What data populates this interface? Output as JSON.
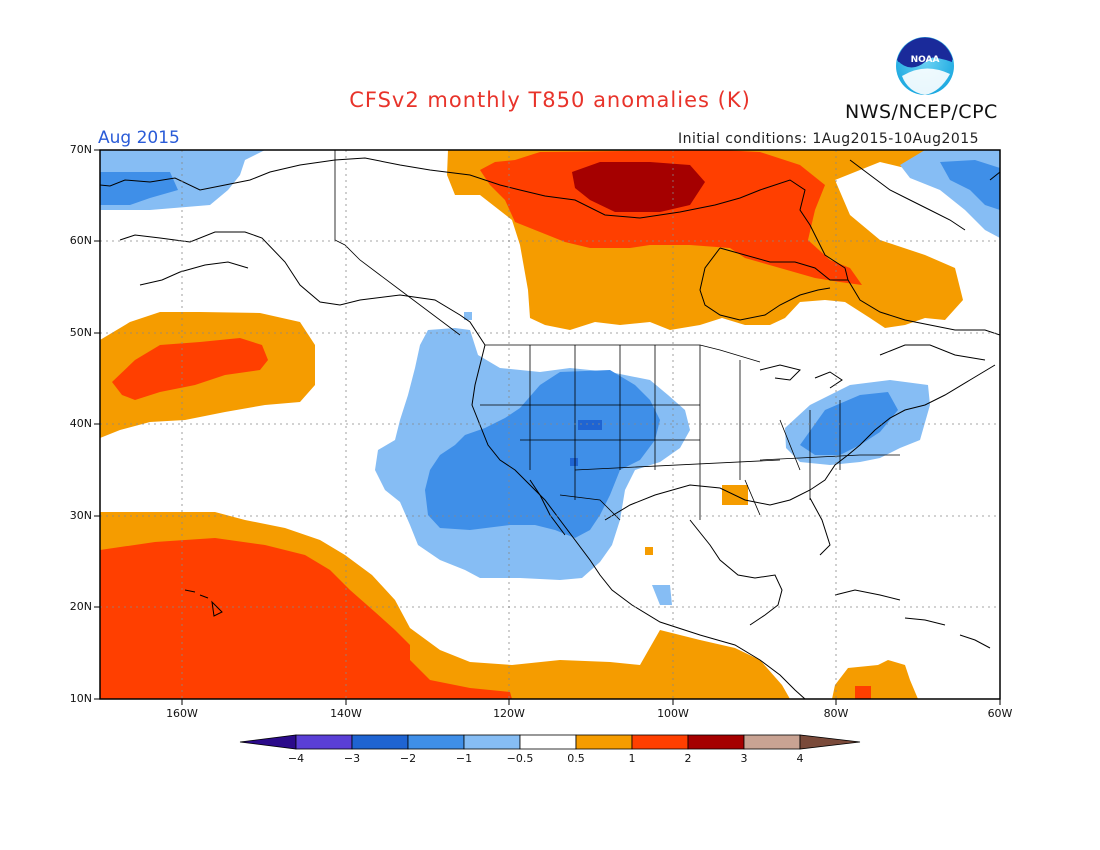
{
  "header": {
    "title": "CFSv2 monthly T850 anomalies (K)",
    "agency": "NWS/NCEP/CPC",
    "logo_text": "NOAA",
    "month": "Aug 2015",
    "initial_conditions": "Initial conditions: 1Aug2015-10Aug2015"
  },
  "axes": {
    "lat_labels": [
      "70N",
      "60N",
      "50N",
      "40N",
      "30N",
      "20N",
      "10N"
    ],
    "lon_labels": [
      "160W",
      "140W",
      "120W",
      "100W",
      "80W",
      "60W"
    ]
  },
  "colorbar": {
    "tick_labels": [
      "−4",
      "−3",
      "−2",
      "−1",
      "−0.5",
      "0.5",
      "1",
      "2",
      "3",
      "4"
    ],
    "colors": [
      "#2b0a8a",
      "#5a3fd6",
      "#1f64d2",
      "#3f8fe8",
      "#86bdf4",
      "#ffffff",
      "#f59c00",
      "#ff3f00",
      "#a50000",
      "#c9a393",
      "#7a4a3a"
    ]
  },
  "colors": {
    "title": "#e8332a",
    "month_label": "#2a5bd7"
  }
}
